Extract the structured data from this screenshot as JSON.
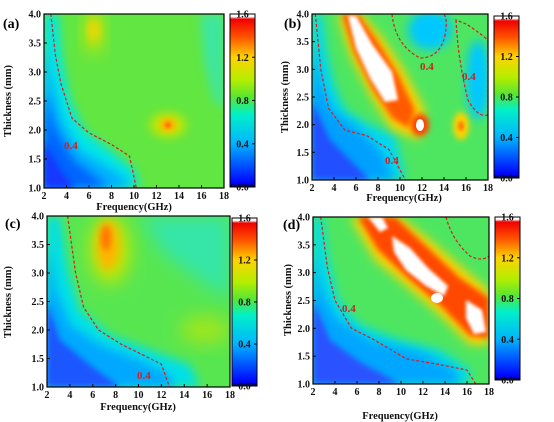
{
  "chart_data": [
    {
      "panel": "(a)",
      "type": "heatmap",
      "xlabel": "Frequency(GHz)",
      "ylabel": "Thickness (mm)",
      "xlim": [
        2,
        18
      ],
      "ylim": [
        1.0,
        4.0
      ],
      "x_ticks": [
        "2",
        "4",
        "6",
        "8",
        "10",
        "12",
        "14",
        "16",
        "18"
      ],
      "y_ticks": [
        "1.0",
        "1.5",
        "2.0",
        "2.5",
        "3.0",
        "3.5",
        "4.0"
      ],
      "colorbar": {
        "range": [
          0.0,
          1.6
        ],
        "ticks": [
          "0.0",
          "0.4",
          "0.8",
          "1.2",
          "1.6"
        ]
      },
      "contour_label": "0.4",
      "contour": [
        [
          2.6,
          4.0
        ],
        [
          3.0,
          3.3
        ],
        [
          3.5,
          2.8
        ],
        [
          4.5,
          2.2
        ],
        [
          6.0,
          1.95
        ],
        [
          8.0,
          1.75
        ],
        [
          9.6,
          1.55
        ],
        [
          10.2,
          1.0
        ]
      ],
      "peaks": [
        {
          "x": 13.2,
          "y": 2.05,
          "value": 1.3
        },
        {
          "x": 6.6,
          "y": 3.7,
          "value": 1.2
        }
      ]
    },
    {
      "panel": "(b)",
      "type": "heatmap",
      "xlabel": "Frequency(GHz)",
      "ylabel": "Thickness (mm)",
      "xlim": [
        2,
        18
      ],
      "ylim": [
        1.0,
        4.0
      ],
      "x_ticks": [
        "2",
        "4",
        "6",
        "8",
        "10",
        "12",
        "14",
        "16",
        "18"
      ],
      "y_ticks": [
        "1.0",
        "1.5",
        "2.0",
        "2.5",
        "3.0",
        "3.5",
        "4.0"
      ],
      "colorbar": {
        "range": [
          0.0,
          1.6
        ],
        "ticks": [
          "0.0",
          "0.4",
          "0.8",
          "1.2",
          "1.6"
        ]
      },
      "contour_labels": [
        "0.4",
        "0.4",
        "0.4"
      ],
      "contour": [
        [
          2.3,
          4.0
        ],
        [
          2.8,
          3.0
        ],
        [
          3.5,
          2.3
        ],
        [
          5.0,
          1.9
        ],
        [
          7.0,
          1.8
        ],
        [
          9.0,
          1.55
        ],
        [
          10.5,
          1.0
        ]
      ],
      "peaks": [
        {
          "x": 8.5,
          "y": 3.2,
          "value": 1.7
        },
        {
          "x": 11.8,
          "y": 2.1,
          "value": 1.6
        },
        {
          "x": 15.7,
          "y": 2.0,
          "value": 1.3
        }
      ]
    },
    {
      "panel": "(c)",
      "type": "heatmap",
      "xlabel": "Frequency(GHz)",
      "ylabel": "Thickness (mm)",
      "xlim": [
        2,
        18
      ],
      "ylim": [
        1.0,
        4.0
      ],
      "x_ticks": [
        "2",
        "4",
        "6",
        "8",
        "10",
        "12",
        "14",
        "16",
        "18"
      ],
      "y_ticks": [
        "1.0",
        "1.5",
        "2.0",
        "2.5",
        "3.0",
        "3.5",
        "4.0"
      ],
      "colorbar": {
        "range": [
          0.0,
          1.6
        ],
        "ticks": [
          "0.0",
          "0.4",
          "0.8",
          "1.2",
          "1.6"
        ]
      },
      "contour_label": "0.4",
      "contour": [
        [
          3.8,
          4.0
        ],
        [
          4.5,
          3.0
        ],
        [
          5.2,
          2.4
        ],
        [
          6.5,
          2.0
        ],
        [
          8.5,
          1.75
        ],
        [
          10.5,
          1.55
        ],
        [
          12.0,
          1.4
        ],
        [
          12.7,
          1.0
        ]
      ],
      "peaks": [
        {
          "x": 7.4,
          "y": 3.6,
          "value": 1.4
        }
      ]
    },
    {
      "panel": "(d)",
      "type": "heatmap",
      "xlabel": "Frequency(GHz)",
      "ylabel": "Thickness (mm)",
      "xlim": [
        2,
        18
      ],
      "ylim": [
        1.0,
        4.0
      ],
      "x_ticks": [
        "2",
        "4",
        "6",
        "8",
        "10",
        "12",
        "14",
        "16",
        "18"
      ],
      "y_ticks": [
        "1.0",
        "1.5",
        "2.0",
        "2.5",
        "3.0",
        "3.5",
        "4.0"
      ],
      "colorbar": {
        "range": [
          0.0,
          1.6
        ],
        "ticks": [
          "0.0",
          "0.4",
          "0.8",
          "1.2",
          "1.6"
        ]
      },
      "contour_label": "0.4",
      "contour": [
        [
          2.7,
          4.0
        ],
        [
          3.3,
          3.1
        ],
        [
          4.0,
          2.5
        ],
        [
          5.5,
          2.0
        ],
        [
          7.5,
          1.8
        ],
        [
          10.5,
          1.45
        ],
        [
          13.5,
          1.35
        ],
        [
          16.0,
          1.25
        ],
        [
          16.8,
          1.0
        ]
      ],
      "peaks": [
        {
          "x": 8.6,
          "y": 3.9,
          "value": 1.7
        },
        {
          "x": 12.5,
          "y": 2.6,
          "value": 1.7
        },
        {
          "x": 17.0,
          "y": 2.2,
          "value": 1.7
        }
      ]
    }
  ]
}
